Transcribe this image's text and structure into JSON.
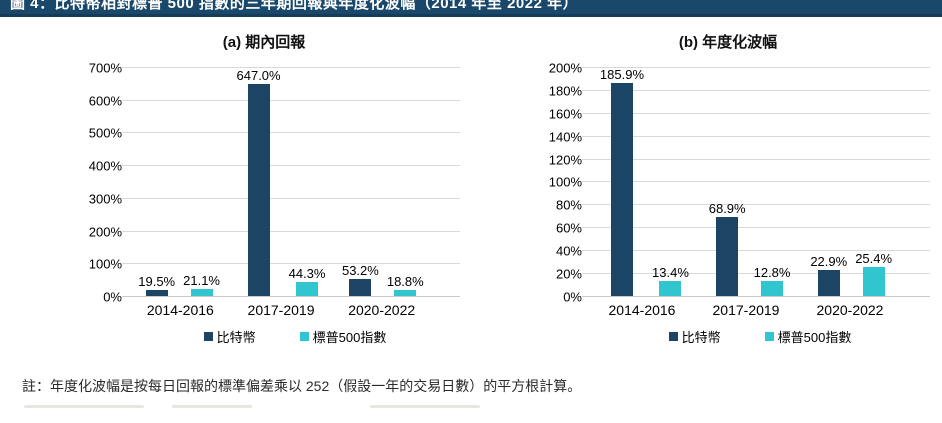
{
  "header": {
    "title": "圖 4：比特幣相對標普 500 指數的三年期回報與年度化波幅（2014 年至 2022 年）"
  },
  "colors": {
    "header_bar": "#1a486a",
    "header_bar_edge": "#143c59",
    "bitcoin": "#1c4565",
    "sp500": "#31c5cf",
    "grid": "#d9d9d9",
    "baseline": "#c9c9c9"
  },
  "legend": {
    "items": [
      {
        "series": "bitcoin",
        "label": "比特幣"
      },
      {
        "series": "sp500",
        "label": "標普500指數"
      }
    ]
  },
  "note": "註：年度化波幅是按每日回報的標準偏差乘以 252（假設一年的交易日數）的平方根計算。",
  "chart_data": [
    {
      "type": "bar",
      "title": "(a)  期內回報",
      "categories": [
        "2014-2016",
        "2017-2019",
        "2020-2022"
      ],
      "series": [
        {
          "name": "比特幣",
          "key": "bitcoin",
          "values": [
            19.5,
            647.0,
            53.2
          ],
          "labels": [
            "19.5%",
            "647.0%",
            "53.2%"
          ]
        },
        {
          "name": "標普500指數",
          "key": "sp500",
          "values": [
            21.1,
            44.3,
            18.8
          ],
          "labels": [
            "21.1%",
            "44.3%",
            "18.8%"
          ]
        }
      ],
      "ylim": [
        0,
        700
      ],
      "ytick_step": 100,
      "tick_suffix": "%",
      "grid": true,
      "legend_position": "bottom"
    },
    {
      "type": "bar",
      "title": "(b)  年度化波幅",
      "categories": [
        "2014-2016",
        "2017-2019",
        "2020-2022"
      ],
      "series": [
        {
          "name": "比特幣",
          "key": "bitcoin",
          "values": [
            185.9,
            68.9,
            22.9
          ],
          "labels": [
            "185.9%",
            "68.9%",
            "22.9%"
          ]
        },
        {
          "name": "標普500指數",
          "key": "sp500",
          "values": [
            13.4,
            12.8,
            25.4
          ],
          "labels": [
            "13.4%",
            "12.8%",
            "25.4%"
          ]
        }
      ],
      "ylim": [
        0,
        200
      ],
      "ytick_step": 20,
      "tick_suffix": "%",
      "grid": true,
      "legend_position": "bottom"
    }
  ]
}
